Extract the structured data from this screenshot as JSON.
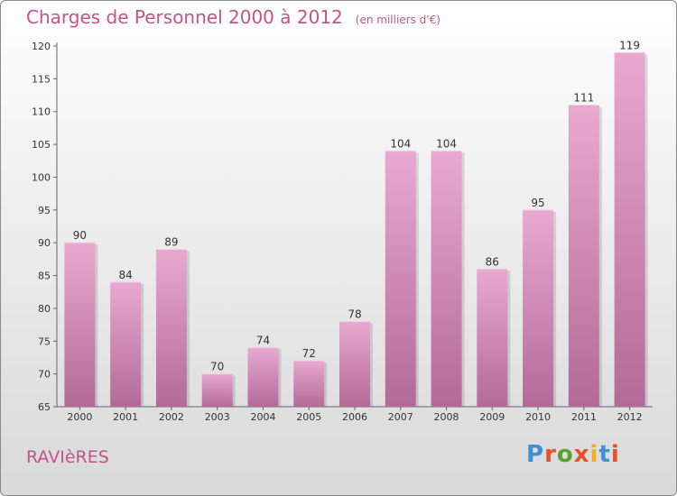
{
  "header": {
    "title": "Charges de Personnel 2000 à 2012",
    "unit": "(en milliers d'€)"
  },
  "footer": {
    "town": "RAVIèRES",
    "logo": "Proxiti"
  },
  "colors": {
    "accent": "#c0558a",
    "bar_top": "#e8a9d0",
    "bar_bottom": "#b36a98",
    "logo_letters": [
      "#3d8fd6",
      "#e8502a",
      "#5aa32f",
      "#e8502a",
      "#f2b01e",
      "#3d8fd6",
      "#e8502a"
    ]
  },
  "chart_data": {
    "type": "bar",
    "title": "Charges de Personnel 2000 à 2012",
    "subtitle": "(en milliers d'€)",
    "categories": [
      "2000",
      "2001",
      "2002",
      "2003",
      "2004",
      "2005",
      "2006",
      "2007",
      "2008",
      "2009",
      "2010",
      "2011",
      "2012"
    ],
    "values": [
      90,
      84,
      89,
      70,
      74,
      72,
      78,
      104,
      104,
      86,
      95,
      111,
      119
    ],
    "ylim": [
      65,
      120
    ],
    "yticks": [
      65,
      70,
      75,
      80,
      85,
      90,
      95,
      100,
      105,
      110,
      115,
      120
    ],
    "grid": false,
    "data_labels": true
  }
}
